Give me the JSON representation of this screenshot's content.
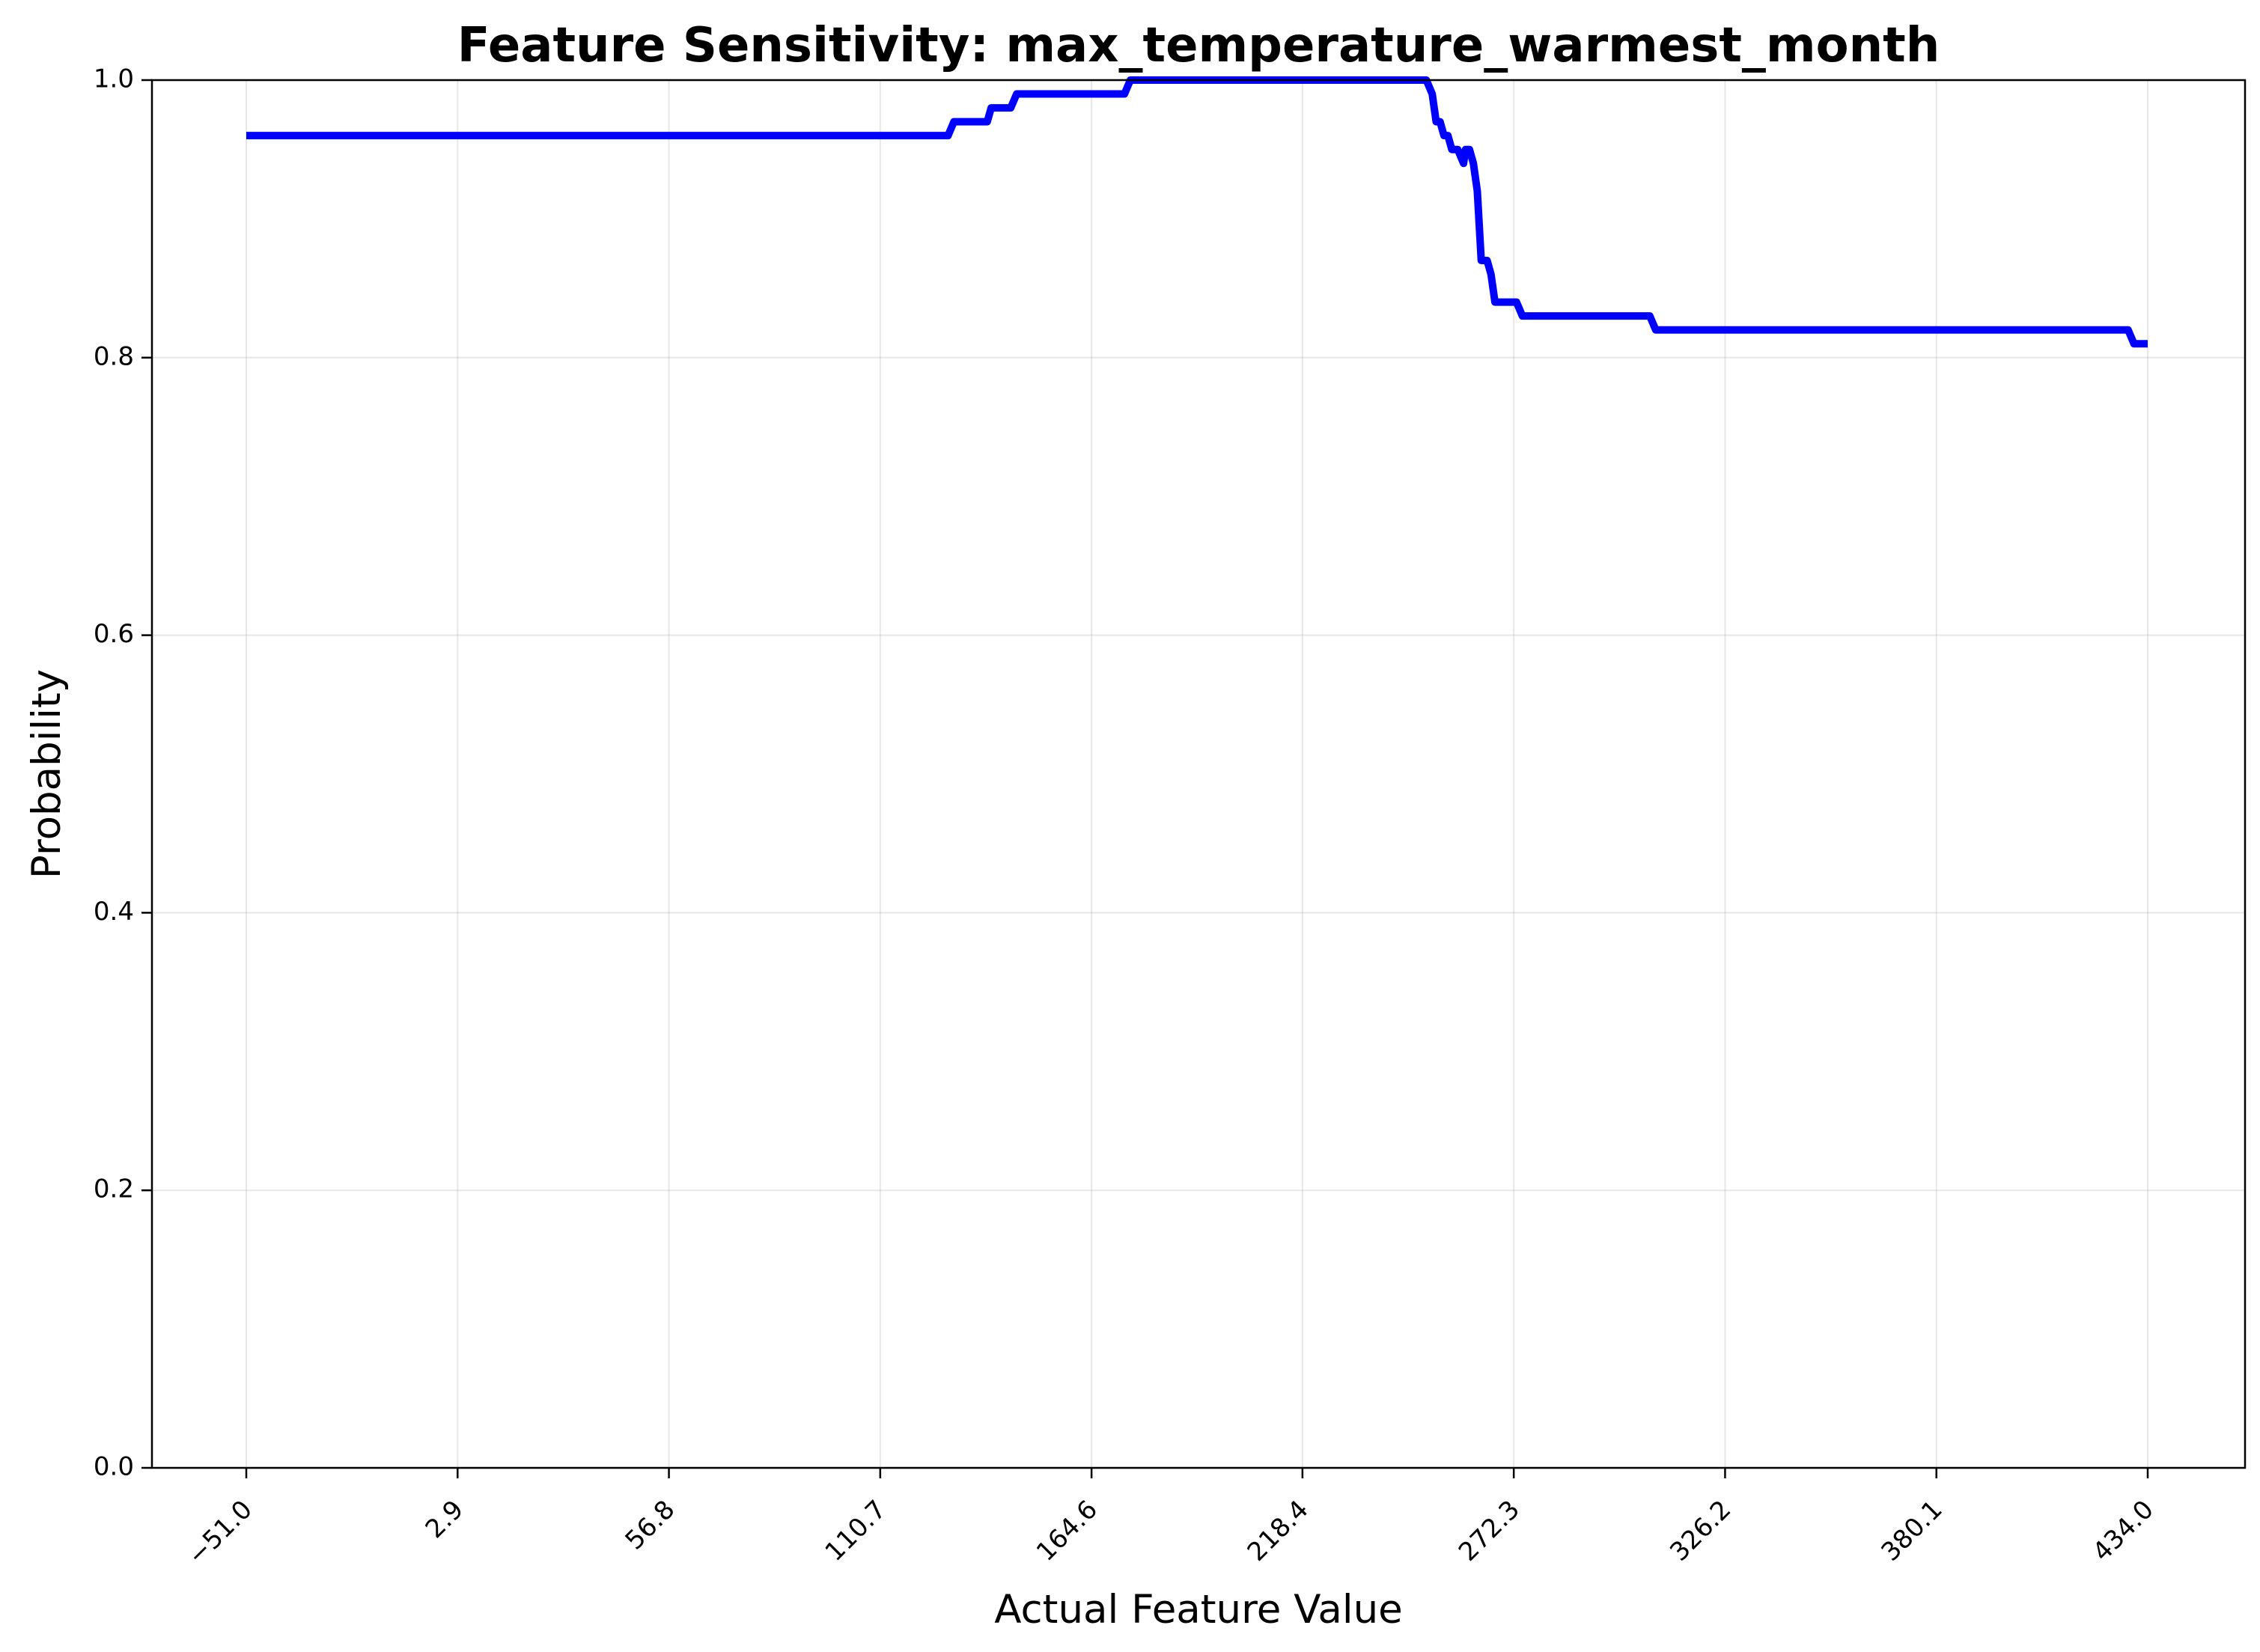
{
  "chart_data": {
    "type": "line",
    "title": "Feature Sensitivity: max_temperature_warmest_month",
    "xlabel": "Actual Feature Value",
    "ylabel": "Probability",
    "xlim": [
      -51.0,
      434.0
    ],
    "ylim": [
      0.0,
      1.0
    ],
    "xticks": [
      -51.0,
      2.9,
      56.8,
      110.7,
      164.6,
      218.4,
      272.3,
      326.2,
      380.1,
      434.0
    ],
    "xtick_labels": [
      "−51.0",
      "2.9",
      "56.8",
      "110.7",
      "164.6",
      "218.4",
      "272.3",
      "326.2",
      "380.1",
      "434.0"
    ],
    "yticks": [
      0.0,
      0.2,
      0.4,
      0.6,
      0.8,
      1.0
    ],
    "ytick_labels": [
      "0.0",
      "0.2",
      "0.4",
      "0.6",
      "0.8",
      "1.0"
    ],
    "grid": true,
    "color": "#0000ff",
    "series": [
      {
        "x": [
          -51.0,
          128.0,
          129.5,
          138.0,
          139.0,
          144.0,
          145.5,
          173.0,
          174.5,
          250.0,
          251.5,
          252.5,
          253.5,
          254.5,
          255.5,
          256.5,
          258.0,
          259.5,
          260.0,
          261.0,
          262.0,
          263.0,
          264.0,
          265.0,
          265.5,
          266.5,
          267.5,
          268.5,
          269.5,
          273.0,
          274.5,
          276.5,
          277.5,
          278.5,
          307.0,
          308.5,
          429.0,
          430.5,
          434.0
        ],
        "y": [
          0.96,
          0.96,
          0.97,
          0.97,
          0.98,
          0.98,
          0.99,
          0.99,
          1.0,
          1.0,
          0.99,
          0.97,
          0.97,
          0.96,
          0.96,
          0.95,
          0.95,
          0.94,
          0.95,
          0.95,
          0.94,
          0.92,
          0.87,
          0.87,
          0.87,
          0.86,
          0.84,
          0.84,
          0.84,
          0.84,
          0.83,
          0.83,
          0.83,
          0.83,
          0.83,
          0.82,
          0.82,
          0.81,
          0.81
        ]
      }
    ]
  }
}
